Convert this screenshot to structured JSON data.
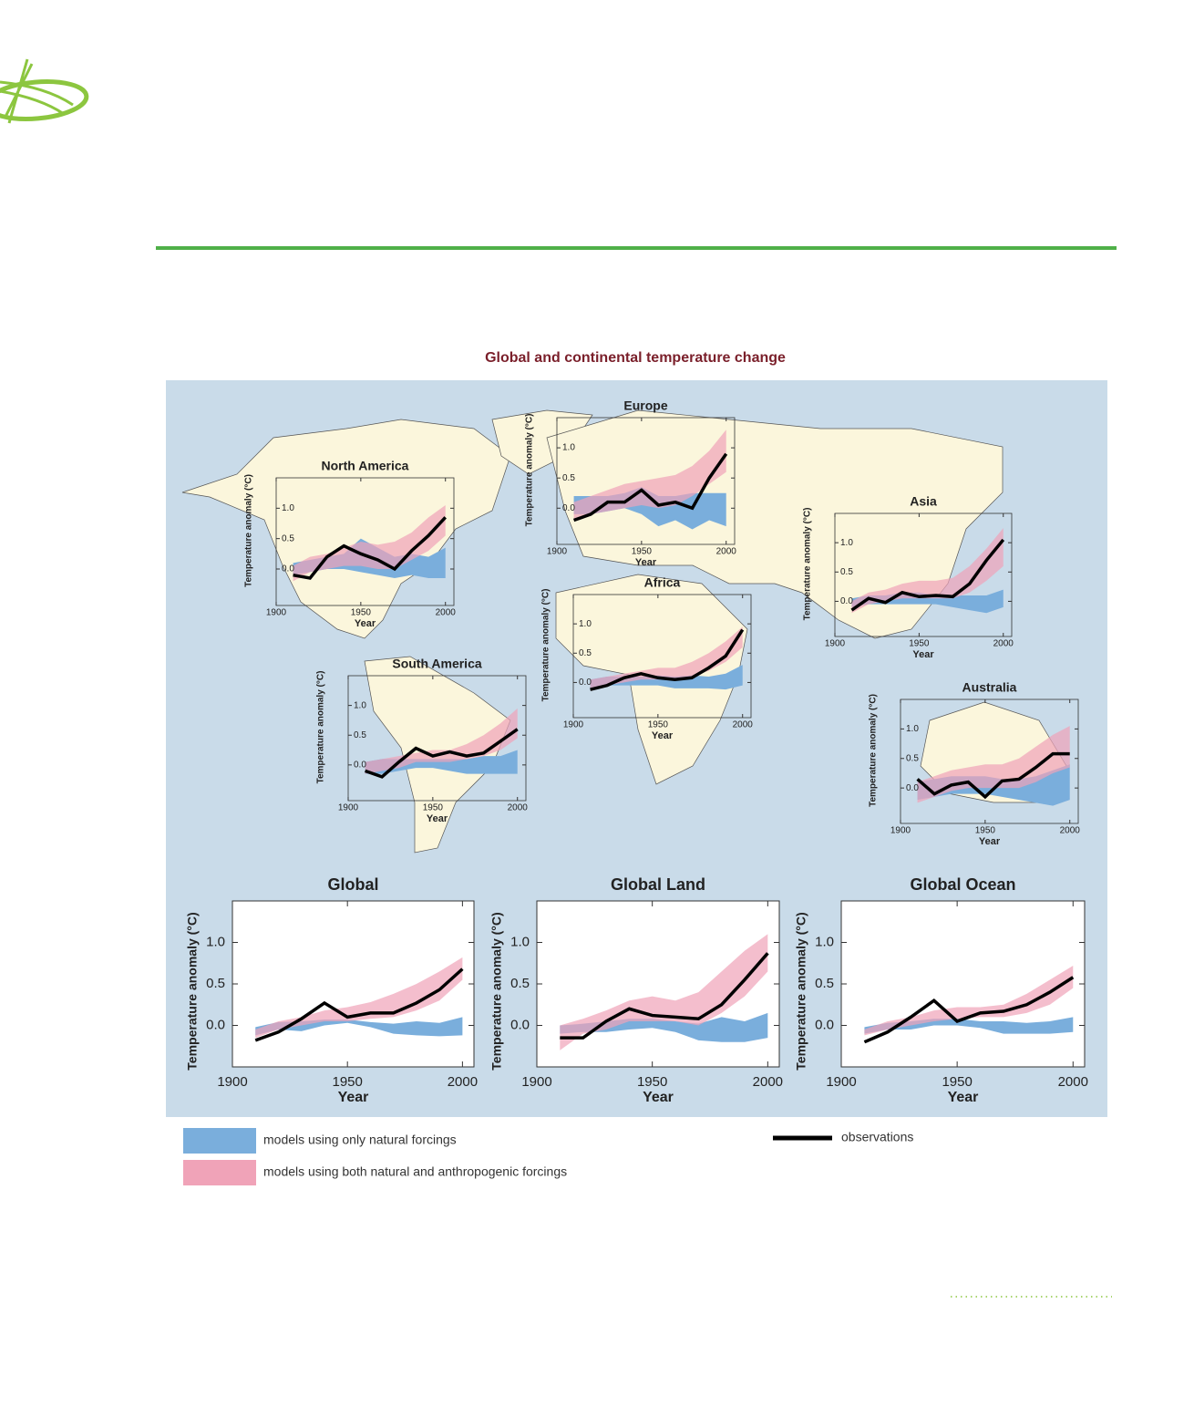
{
  "title": "Global and continental temperature change",
  "legend": [
    {
      "label": "models using only natural forcings",
      "color": "#7aaedc"
    },
    {
      "label": "models using both natural and anthropogenic forcings",
      "color": "#f0a3b8"
    },
    {
      "label": "observations",
      "color": "#000000"
    }
  ],
  "chart_data": [
    {
      "type": "band-line",
      "title": "North America",
      "xlabel": "Year",
      "ylabel": "Temperature anomaly (°C)",
      "x": [
        1910,
        1920,
        1930,
        1940,
        1950,
        1960,
        1970,
        1980,
        1990,
        2000
      ],
      "observations": [
        -0.1,
        -0.15,
        0.2,
        0.38,
        0.25,
        0.15,
        0.0,
        0.3,
        0.55,
        0.85
      ],
      "natural": {
        "low": [
          -0.1,
          -0.05,
          0,
          0,
          -0.05,
          -0.1,
          -0.15,
          -0.1,
          -0.15,
          -0.15
        ],
        "high": [
          0.1,
          0.15,
          0.2,
          0.25,
          0.5,
          0.35,
          0.2,
          0.25,
          0.2,
          0.35
        ]
      },
      "combined": {
        "low": [
          -0.2,
          -0.05,
          0,
          0.05,
          0.05,
          0,
          0,
          0.15,
          0.3,
          0.55
        ],
        "high": [
          0.05,
          0.2,
          0.25,
          0.35,
          0.45,
          0.4,
          0.45,
          0.6,
          0.85,
          1.05
        ]
      },
      "xlim": [
        1900,
        2005
      ],
      "ylim": [
        -0.6,
        1.5
      ],
      "xticks": [
        1900,
        1950,
        2000
      ],
      "yticks": [
        {
          "value": 0,
          "label": "0.0"
        },
        0.5,
        {
          "value": 1,
          "label": "1.0"
        }
      ]
    },
    {
      "type": "band-line",
      "title": "Europe",
      "xlabel": "Year",
      "ylabel": "Temperature anomaly (°C)",
      "x": [
        1910,
        1920,
        1930,
        1940,
        1950,
        1960,
        1970,
        1980,
        1990,
        2000
      ],
      "observations": [
        -0.2,
        -0.1,
        0.1,
        0.1,
        0.3,
        0.05,
        0.1,
        0.0,
        0.5,
        0.9
      ],
      "natural": {
        "low": [
          -0.1,
          -0.1,
          -0.05,
          0,
          -0.1,
          -0.3,
          -0.2,
          -0.35,
          -0.2,
          -0.3
        ],
        "high": [
          0.2,
          0.2,
          0.2,
          0.25,
          0.35,
          0.2,
          0.2,
          0.25,
          0.25,
          0.25
        ]
      },
      "combined": {
        "low": [
          -0.2,
          -0.1,
          -0.05,
          0,
          0.05,
          0,
          0.05,
          0.2,
          0.4,
          0.6
        ],
        "high": [
          0.1,
          0.2,
          0.3,
          0.4,
          0.45,
          0.5,
          0.55,
          0.7,
          0.95,
          1.3
        ]
      },
      "xlim": [
        1900,
        2005
      ],
      "ylim": [
        -0.6,
        1.5
      ],
      "xticks": [
        1900,
        1950,
        2000
      ],
      "yticks": [
        {
          "value": 0,
          "label": "0.0"
        },
        0.5,
        {
          "value": 1,
          "label": "1.0"
        }
      ]
    },
    {
      "type": "band-line",
      "title": "Asia",
      "xlabel": "Year",
      "ylabel": "Temperature anomaly (°C)",
      "x": [
        1910,
        1920,
        1930,
        1940,
        1950,
        1960,
        1970,
        1980,
        1990,
        2000
      ],
      "observations": [
        -0.15,
        0.05,
        -0.02,
        0.15,
        0.08,
        0.1,
        0.08,
        0.3,
        0.7,
        1.05
      ],
      "natural": {
        "low": [
          -0.1,
          -0.05,
          -0.05,
          -0.05,
          -0.05,
          -0.05,
          -0.1,
          -0.15,
          -0.2,
          -0.1
        ],
        "high": [
          0.05,
          0.1,
          0.1,
          0.15,
          0.15,
          0.1,
          0.1,
          0.1,
          0.1,
          0.2
        ]
      },
      "combined": {
        "low": [
          -0.2,
          -0.05,
          0,
          0.05,
          0.05,
          0.05,
          0.05,
          0.15,
          0.35,
          0.6
        ],
        "high": [
          0,
          0.15,
          0.2,
          0.3,
          0.35,
          0.35,
          0.4,
          0.6,
          0.9,
          1.25
        ]
      },
      "xlim": [
        1900,
        2005
      ],
      "ylim": [
        -0.6,
        1.5
      ],
      "xticks": [
        1900,
        1950,
        2000
      ],
      "yticks": [
        {
          "value": 0,
          "label": "0.0"
        },
        0.5,
        {
          "value": 1,
          "label": "1.0"
        }
      ]
    },
    {
      "type": "band-line",
      "title": "Africa",
      "xlabel": "Year",
      "ylabel": "Temperature anomaly (°C)",
      "x": [
        1910,
        1920,
        1930,
        1940,
        1950,
        1960,
        1970,
        1980,
        1990,
        2000
      ],
      "observations": [
        -0.12,
        -0.05,
        0.08,
        0.15,
        0.08,
        0.05,
        0.08,
        0.25,
        0.45,
        0.9
      ],
      "natural": {
        "low": [
          -0.1,
          -0.05,
          -0.05,
          -0.05,
          -0.05,
          -0.1,
          -0.1,
          -0.1,
          -0.12,
          -0.05
        ],
        "high": [
          0.05,
          0.1,
          0.1,
          0.1,
          0.12,
          0.1,
          0.12,
          0.1,
          0.15,
          0.3
        ]
      },
      "combined": {
        "low": [
          -0.1,
          -0.05,
          0,
          0.05,
          0.05,
          0.05,
          0.1,
          0.2,
          0.35,
          0.6
        ],
        "high": [
          0.05,
          0.1,
          0.15,
          0.2,
          0.25,
          0.25,
          0.35,
          0.5,
          0.7,
          0.95
        ]
      },
      "xlim": [
        1900,
        2005
      ],
      "ylim": [
        -0.6,
        1.5
      ],
      "xticks": [
        1900,
        1950,
        2000
      ],
      "yticks": [
        {
          "value": 0,
          "label": "0.0"
        },
        0.5,
        {
          "value": 1,
          "label": "1.0"
        }
      ]
    },
    {
      "type": "band-line",
      "title": "South America",
      "xlabel": "Year",
      "ylabel": "Temperature anomaly (°C)",
      "x": [
        1910,
        1920,
        1930,
        1940,
        1950,
        1960,
        1970,
        1980,
        1990,
        2000
      ],
      "observations": [
        -0.1,
        -0.2,
        0.05,
        0.28,
        0.15,
        0.22,
        0.15,
        0.2,
        0.4,
        0.6
      ],
      "natural": {
        "low": [
          -0.15,
          -0.15,
          -0.1,
          -0.05,
          -0.05,
          -0.1,
          -0.15,
          -0.15,
          -0.15,
          -0.15
        ],
        "high": [
          0.05,
          0.1,
          0.1,
          0.1,
          0.1,
          0.1,
          0.1,
          0.15,
          0.15,
          0.25
        ]
      },
      "combined": {
        "low": [
          -0.15,
          -0.1,
          -0.05,
          0.05,
          0.05,
          0.05,
          0.1,
          0.15,
          0.25,
          0.45
        ],
        "high": [
          0.05,
          0.1,
          0.15,
          0.2,
          0.25,
          0.25,
          0.35,
          0.5,
          0.7,
          0.95
        ]
      },
      "xlim": [
        1900,
        2005
      ],
      "ylim": [
        -0.6,
        1.5
      ],
      "xticks": [
        1900,
        1950,
        2000
      ],
      "yticks": [
        {
          "value": 0,
          "label": "0.0"
        },
        0.5,
        {
          "value": 1,
          "label": "1.0"
        }
      ]
    },
    {
      "type": "band-line",
      "title": "Australia",
      "xlabel": "Year",
      "ylabel": "Temperature anomaly (°C)",
      "x": [
        1910,
        1920,
        1930,
        1940,
        1950,
        1960,
        1970,
        1980,
        1990,
        2000
      ],
      "observations": [
        0.15,
        -0.1,
        0.05,
        0.1,
        -0.15,
        0.12,
        0.15,
        0.35,
        0.58,
        0.58
      ],
      "natural": {
        "low": [
          -0.2,
          -0.15,
          -0.1,
          -0.1,
          -0.1,
          -0.15,
          -0.2,
          -0.25,
          -0.3,
          -0.2
        ],
        "high": [
          0.1,
          0.15,
          0.2,
          0.2,
          0.2,
          0.15,
          0.15,
          0.2,
          0.3,
          0.4
        ]
      },
      "combined": {
        "low": [
          -0.25,
          -0.15,
          -0.05,
          0,
          0,
          0,
          0,
          0.1,
          0.25,
          0.35
        ],
        "high": [
          0.1,
          0.2,
          0.3,
          0.35,
          0.4,
          0.4,
          0.5,
          0.7,
          0.9,
          1.05
        ]
      },
      "xlim": [
        1900,
        2005
      ],
      "ylim": [
        -0.6,
        1.5
      ],
      "xticks": [
        1900,
        1950,
        2000
      ],
      "yticks": [
        {
          "value": 0,
          "label": "0.0"
        },
        0.5,
        {
          "value": 1,
          "label": "1.0"
        }
      ]
    },
    {
      "type": "band-line",
      "title": "Global",
      "xlabel": "Year",
      "ylabel": "Temperature anomaly (°C)",
      "x": [
        1910,
        1920,
        1930,
        1940,
        1950,
        1960,
        1970,
        1980,
        1990,
        2000
      ],
      "observations": [
        -0.18,
        -0.08,
        0.08,
        0.27,
        0.1,
        0.15,
        0.15,
        0.27,
        0.43,
        0.68
      ],
      "natural": {
        "low": [
          -0.12,
          -0.05,
          -0.07,
          0,
          0.03,
          -0.02,
          -0.1,
          -0.12,
          -0.13,
          -0.12
        ],
        "high": [
          -0.02,
          0.04,
          0.05,
          0.07,
          0.07,
          0.04,
          0.02,
          0.05,
          0.03,
          0.1
        ]
      },
      "combined": {
        "low": [
          -0.15,
          -0.05,
          0,
          0.05,
          0.05,
          0.08,
          0.1,
          0.18,
          0.3,
          0.55
        ],
        "high": [
          -0.05,
          0.05,
          0.1,
          0.18,
          0.22,
          0.28,
          0.38,
          0.5,
          0.65,
          0.82
        ]
      },
      "xlim": [
        1900,
        2005
      ],
      "ylim": [
        -0.5,
        1.5
      ],
      "xticks": [
        1900,
        1950,
        2000
      ],
      "yticks": [
        {
          "value": 0,
          "label": "0.0"
        },
        0.5,
        {
          "value": 1,
          "label": "1.0"
        }
      ]
    },
    {
      "type": "band-line",
      "title": "Global Land",
      "xlabel": "Year",
      "ylabel": "Temperature anomaly (°C)",
      "x": [
        1910,
        1920,
        1930,
        1940,
        1950,
        1960,
        1970,
        1980,
        1990,
        2000
      ],
      "observations": [
        -0.15,
        -0.15,
        0.05,
        0.2,
        0.12,
        0.1,
        0.08,
        0.25,
        0.55,
        0.87
      ],
      "natural": {
        "low": [
          -0.1,
          -0.08,
          -0.08,
          -0.05,
          -0.03,
          -0.08,
          -0.18,
          -0.2,
          -0.2,
          -0.15
        ],
        "high": [
          0,
          0.02,
          0.05,
          0.08,
          0.08,
          0.05,
          0.02,
          0.1,
          0.05,
          0.15
        ]
      },
      "combined": {
        "low": [
          -0.3,
          -0.1,
          -0.05,
          0.05,
          0.05,
          0.05,
          0,
          0.15,
          0.35,
          0.65
        ],
        "high": [
          0,
          0.08,
          0.18,
          0.3,
          0.35,
          0.3,
          0.4,
          0.65,
          0.9,
          1.1
        ]
      },
      "xlim": [
        1900,
        2005
      ],
      "ylim": [
        -0.5,
        1.5
      ],
      "xticks": [
        1900,
        1950,
        2000
      ],
      "yticks": [
        {
          "value": 0,
          "label": "0.0"
        },
        0.5,
        {
          "value": 1,
          "label": "1.0"
        }
      ]
    },
    {
      "type": "band-line",
      "title": "Global Ocean",
      "xlabel": "Year",
      "ylabel": "Temperature anomaly (°C)",
      "x": [
        1910,
        1920,
        1930,
        1940,
        1950,
        1960,
        1970,
        1980,
        1990,
        2000
      ],
      "observations": [
        -0.2,
        -0.08,
        0.1,
        0.3,
        0.05,
        0.15,
        0.17,
        0.25,
        0.4,
        0.58
      ],
      "natural": {
        "low": [
          -0.1,
          -0.05,
          -0.05,
          0,
          0,
          -0.03,
          -0.1,
          -0.1,
          -0.1,
          -0.08
        ],
        "high": [
          -0.02,
          0.03,
          0.05,
          0.08,
          0.08,
          0.05,
          0.05,
          0.03,
          0.05,
          0.1
        ]
      },
      "combined": {
        "low": [
          -0.12,
          -0.05,
          0,
          0.05,
          0.08,
          0.1,
          0.1,
          0.15,
          0.25,
          0.45
        ],
        "high": [
          -0.05,
          0.05,
          0.1,
          0.18,
          0.22,
          0.22,
          0.25,
          0.38,
          0.55,
          0.72
        ]
      },
      "xlim": [
        1900,
        2005
      ],
      "ylim": [
        -0.5,
        1.5
      ],
      "xticks": [
        1900,
        1950,
        2000
      ],
      "yticks": [
        {
          "value": 0,
          "label": "0.0"
        },
        0.5,
        {
          "value": 1,
          "label": "1.0"
        }
      ]
    }
  ]
}
